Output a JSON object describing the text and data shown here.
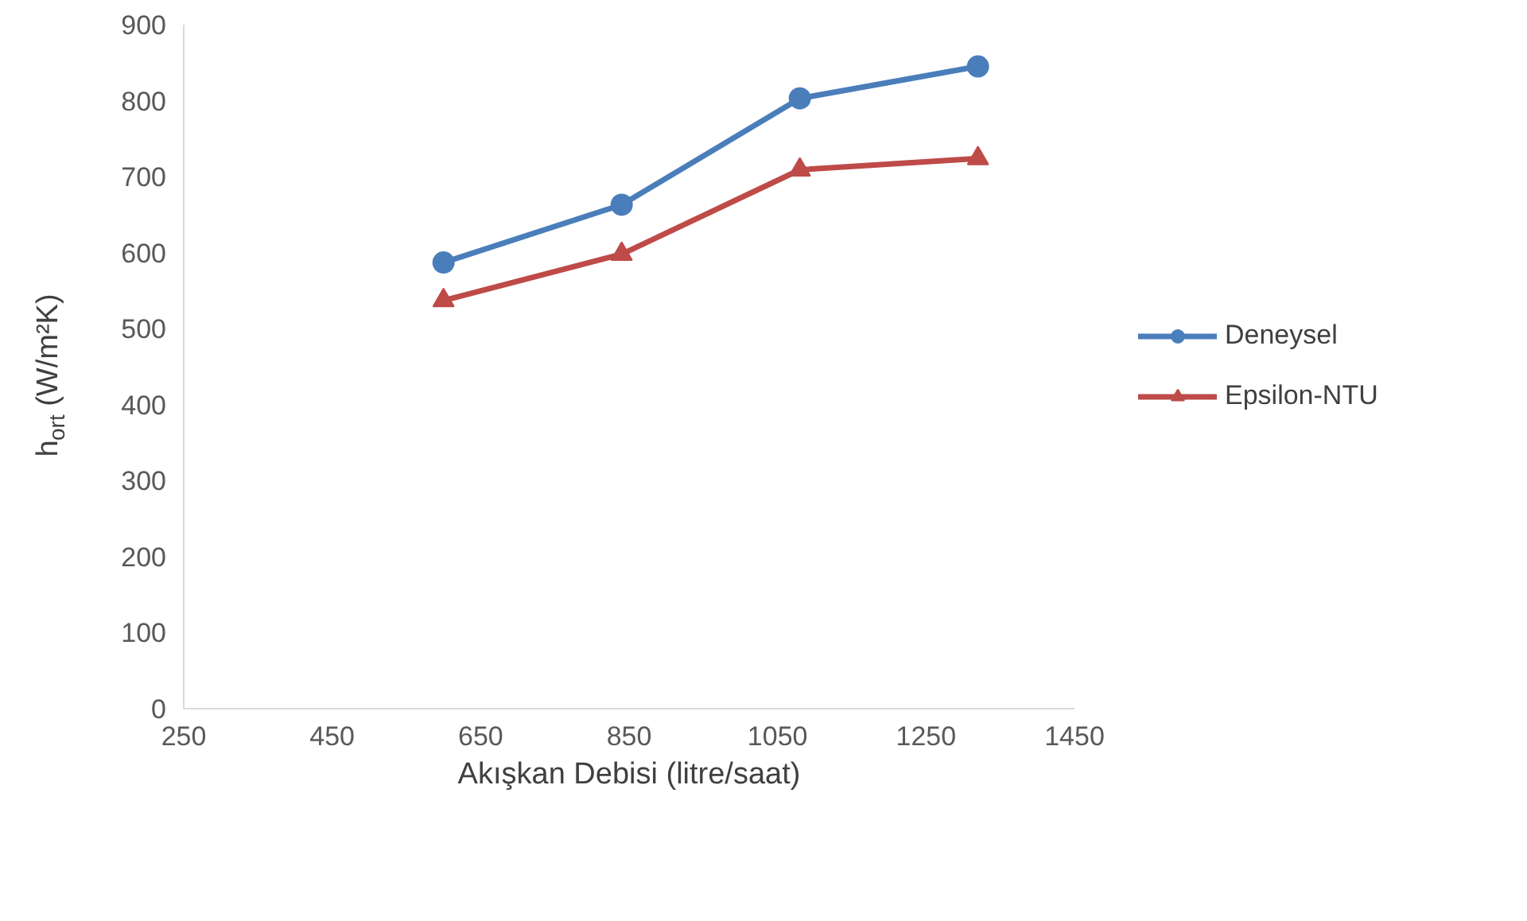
{
  "chart_data": {
    "type": "line",
    "xlabel": "Akışkan Debisi (litre/saat)",
    "ylabel": "h$_{ort}$ (W/m²K)",
    "x": [
      600,
      840,
      1080,
      1320
    ],
    "series": [
      {
        "name": "Deneysel",
        "color": "#4a7ebb",
        "marker": "circle",
        "values": [
          587,
          663,
          803,
          845
        ]
      },
      {
        "name": "Epsilon-NTU",
        "color": "#be4b48",
        "marker": "triangle",
        "values": [
          537,
          598,
          709,
          724
        ]
      }
    ],
    "xlim": [
      250,
      1450
    ],
    "xticks": [
      250,
      450,
      650,
      850,
      1050,
      1250,
      1450
    ],
    "ylim": [
      0,
      900
    ],
    "yticks": [
      0,
      100,
      200,
      300,
      400,
      500,
      600,
      700,
      800,
      900
    ],
    "grid": false,
    "legend": "right",
    "line_style": "solid"
  }
}
